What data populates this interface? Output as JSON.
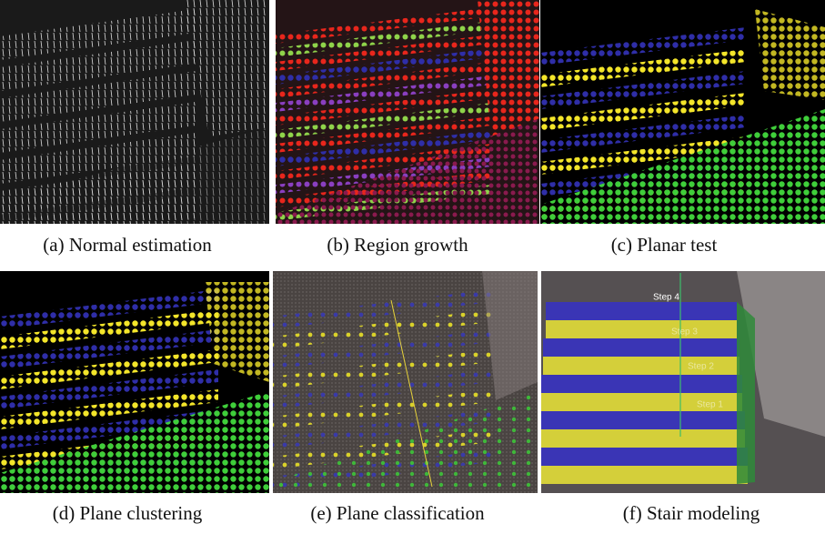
{
  "panels": [
    {
      "caption": "(a) Normal estimation"
    },
    {
      "caption": "(b) Region growth"
    },
    {
      "caption": "(c) Planar test"
    },
    {
      "caption": "(d) Plane clustering"
    },
    {
      "caption": "(e) Plane classification"
    },
    {
      "caption": "(f) Stair modeling"
    }
  ],
  "step_labels": [
    "Step 4",
    "Step 3",
    "Step 2",
    "Step 1"
  ]
}
